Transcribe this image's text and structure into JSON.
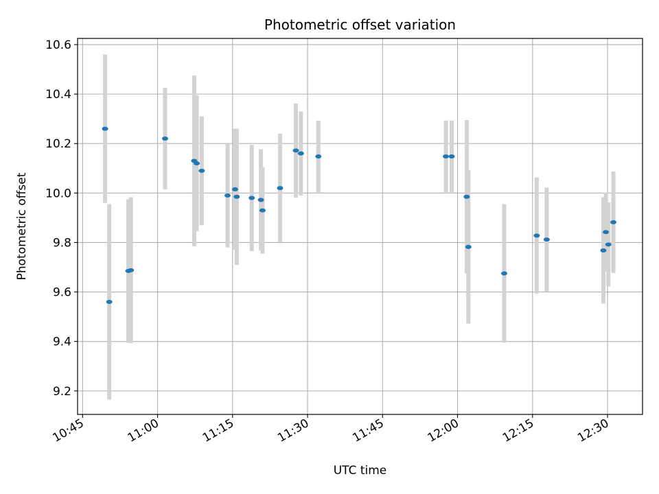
{
  "chart_data": {
    "type": "scatter",
    "title": "Photometric offset variation",
    "xlabel": "UTC time",
    "ylabel": "Photometric offset",
    "x_tick_labels": [
      "10:45",
      "11:00",
      "11:15",
      "11:30",
      "11:45",
      "12:00",
      "12:15",
      "12:30"
    ],
    "x_tick_minutes": [
      645,
      660,
      675,
      690,
      705,
      720,
      735,
      750
    ],
    "y_ticks": [
      9.2,
      9.4,
      9.6,
      9.8,
      10.0,
      10.2,
      10.4,
      10.6
    ],
    "y_tick_labels": [
      "9.2",
      "9.4",
      "9.6",
      "9.8",
      "10.0",
      "10.2",
      "10.4",
      "10.6"
    ],
    "xlim": [
      "10:44",
      "12:37"
    ],
    "ylim": [
      9.105,
      10.625
    ],
    "grid": true,
    "colors": {
      "point": "#1f77b4",
      "errorbar": "#d3d3d3",
      "grid": "#b0b0b0"
    },
    "series": [
      {
        "points": [
          {
            "x": "10:49:30",
            "y": 10.26,
            "yerr": 0.3
          },
          {
            "x": "10:50:20",
            "y": 9.56,
            "yerr": 0.395
          },
          {
            "x": "10:54:10",
            "y": 9.685,
            "yerr": 0.29
          },
          {
            "x": "10:54:40",
            "y": 9.688,
            "yerr": 0.295
          },
          {
            "x": "11:01:30",
            "y": 10.22,
            "yerr": 0.205
          },
          {
            "x": "11:07:20",
            "y": 10.13,
            "yerr": 0.345
          },
          {
            "x": "11:07:50",
            "y": 10.12,
            "yerr": 0.275
          },
          {
            "x": "11:08:50",
            "y": 10.09,
            "yerr": 0.22
          },
          {
            "x": "11:14:00",
            "y": 9.99,
            "yerr": 0.21
          },
          {
            "x": "11:15:30",
            "y": 10.015,
            "yerr": 0.245
          },
          {
            "x": "11:15:50",
            "y": 9.985,
            "yerr": 0.275
          },
          {
            "x": "11:18:50",
            "y": 9.98,
            "yerr": 0.215
          },
          {
            "x": "11:20:40",
            "y": 9.972,
            "yerr": 0.205
          },
          {
            "x": "11:21:00",
            "y": 9.93,
            "yerr": 0.175
          },
          {
            "x": "11:24:30",
            "y": 10.02,
            "yerr": 0.22
          },
          {
            "x": "11:27:40",
            "y": 10.172,
            "yerr": 0.19
          },
          {
            "x": "11:28:40",
            "y": 10.16,
            "yerr": 0.17
          },
          {
            "x": "11:32:10",
            "y": 10.148,
            "yerr": 0.145
          },
          {
            "x": "11:57:40",
            "y": 10.148,
            "yerr": 0.145
          },
          {
            "x": "11:58:50",
            "y": 10.148,
            "yerr": 0.145
          },
          {
            "x": "12:01:50",
            "y": 9.985,
            "yerr": 0.31
          },
          {
            "x": "12:02:10",
            "y": 9.782,
            "yerr": 0.31
          },
          {
            "x": "12:09:20",
            "y": 9.675,
            "yerr": 0.28
          },
          {
            "x": "12:15:50",
            "y": 9.828,
            "yerr": 0.235
          },
          {
            "x": "12:17:50",
            "y": 9.812,
            "yerr": 0.21
          },
          {
            "x": "12:29:10",
            "y": 9.768,
            "yerr": 0.215
          },
          {
            "x": "12:29:40",
            "y": 9.842,
            "yerr": 0.16
          },
          {
            "x": "12:30:10",
            "y": 9.792,
            "yerr": 0.17
          },
          {
            "x": "12:31:10",
            "y": 9.882,
            "yerr": 0.205
          }
        ]
      }
    ]
  }
}
